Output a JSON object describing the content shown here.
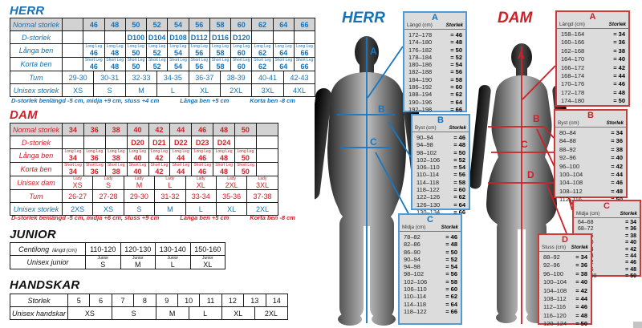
{
  "accent": {
    "blue": "#1472b8",
    "red": "#cc2127"
  },
  "herr": {
    "title": "HERR",
    "table": {
      "rows": [
        {
          "label": "Normal storlek",
          "values": [
            "46",
            "48",
            "50",
            "52",
            "54",
            "56",
            "58",
            "60",
            "62",
            "64",
            "66"
          ]
        },
        {
          "label": "D-storlek",
          "values": [
            "",
            "",
            "D100",
            "D104",
            "D108",
            "D112",
            "D116",
            "D120",
            "",
            "",
            ""
          ]
        },
        {
          "label": "Långa ben",
          "tag": "Long Leg",
          "values": [
            "46",
            "48",
            "50",
            "52",
            "54",
            "56",
            "58",
            "60",
            "62",
            "64",
            "66"
          ]
        },
        {
          "label": "Korta ben",
          "tag": "Short Leg",
          "values": [
            "46",
            "48",
            "50",
            "52",
            "54",
            "56",
            "58",
            "60",
            "62",
            "64",
            "66"
          ]
        },
        {
          "label": "Tum",
          "values": [
            "29-30",
            "30-31",
            "32-33",
            "34-35",
            "36-37",
            "38-39",
            "40-41",
            "42-43"
          ]
        },
        {
          "label": "Unisex storlek",
          "values": [
            "XS",
            "S",
            "M",
            "L",
            "XL",
            "2XL",
            "3XL",
            "4XL"
          ]
        }
      ]
    },
    "footnote": {
      "main": "D-storlek benlängd -5 cm, midja +9 cm, stuss +4 cm",
      "langa": "Långa ben +5 cm",
      "korta": "Korta ben -8 cm"
    }
  },
  "dam": {
    "title": "DAM",
    "table": {
      "rows": [
        {
          "label": "Normal storlek",
          "values": [
            "34",
            "36",
            "38",
            "40",
            "42",
            "44",
            "46",
            "48",
            "50"
          ]
        },
        {
          "label": "D-storlek",
          "values": [
            "",
            "",
            "",
            "D20",
            "D21",
            "D22",
            "D23",
            "D24",
            ""
          ]
        },
        {
          "label": "Långa ben",
          "tag": "Long Leg",
          "values": [
            "34",
            "36",
            "38",
            "40",
            "42",
            "44",
            "46",
            "48",
            "50"
          ]
        },
        {
          "label": "Korta ben",
          "tag": "Short Leg",
          "values": [
            "34",
            "36",
            "38",
            "40",
            "42",
            "44",
            "46",
            "48",
            "50"
          ]
        },
        {
          "label": "Unisex dam",
          "tag": "Lady",
          "values": [
            "XS",
            "S",
            "M",
            "L",
            "XL",
            "2XL",
            "3XL"
          ]
        },
        {
          "label": "Tum",
          "values": [
            "26-27",
            "27-28",
            "29-30",
            "31-32",
            "33-34",
            "35-36",
            "37-38"
          ]
        },
        {
          "label": "Unisex storlek",
          "values": [
            "2XS",
            "XS",
            "S",
            "M",
            "L",
            "XL",
            "2XL"
          ]
        }
      ]
    },
    "footnote": {
      "main": "D-storlek benlängd -5 cm, midja +6 cm, stuss +9 cm",
      "langa": "Långa ben +5 cm",
      "korta": "Korta ben -8 cm"
    }
  },
  "junior": {
    "title": "JUNIOR",
    "row1_label": "Centilong",
    "row1_sub": "längd (cm)",
    "ranges": [
      "110-120",
      "120-130",
      "130-140",
      "150-160"
    ],
    "row2_label": "Unisex junior",
    "tag": "Junior",
    "sizes": [
      "S",
      "M",
      "L",
      "XL"
    ]
  },
  "handskar": {
    "title": "HANDSKAR",
    "row1_label": "Storlek",
    "sizes": [
      "5",
      "6",
      "7",
      "8",
      "9",
      "10",
      "11",
      "12",
      "13",
      "14"
    ],
    "row2_label": "Unisex handskar",
    "gloves": [
      "XS",
      "S",
      "M",
      "L",
      "XL",
      "2XL"
    ]
  },
  "figures": {
    "eq": "=",
    "herr": {
      "title": "HERR",
      "boxes": [
        {
          "letter": "A",
          "measure": "Längd (cm)",
          "col2": "Storlek",
          "rows": [
            [
              "172–178",
              "46"
            ],
            [
              "174–180",
              "48"
            ],
            [
              "176–182",
              "50"
            ],
            [
              "178–184",
              "52"
            ],
            [
              "180–186",
              "54"
            ],
            [
              "182–188",
              "56"
            ],
            [
              "184–190",
              "58"
            ],
            [
              "186–192",
              "60"
            ],
            [
              "188–194",
              "62"
            ],
            [
              "190–196",
              "64"
            ],
            [
              "192–198",
              "66"
            ]
          ]
        },
        {
          "letter": "B",
          "measure": "Byst (cm)",
          "col2": "Storlek",
          "rows": [
            [
              "90–94",
              "46"
            ],
            [
              "94–98",
              "48"
            ],
            [
              "98–102",
              "50"
            ],
            [
              "102–106",
              "52"
            ],
            [
              "106–110",
              "54"
            ],
            [
              "110–114",
              "56"
            ],
            [
              "114–118",
              "58"
            ],
            [
              "118–122",
              "60"
            ],
            [
              "122–126",
              "62"
            ],
            [
              "126–130",
              "64"
            ],
            [
              "130–134",
              "66"
            ]
          ]
        },
        {
          "letter": "C",
          "measure": "Midja (cm)",
          "col2": "Storlek",
          "rows": [
            [
              "78–82",
              "46"
            ],
            [
              "82–86",
              "48"
            ],
            [
              "86–90",
              "50"
            ],
            [
              "90–94",
              "52"
            ],
            [
              "94–98",
              "54"
            ],
            [
              "98–102",
              "56"
            ],
            [
              "102–106",
              "58"
            ],
            [
              "106–110",
              "60"
            ],
            [
              "110–114",
              "62"
            ],
            [
              "114–118",
              "64"
            ],
            [
              "118–122",
              "66"
            ]
          ]
        }
      ]
    },
    "dam": {
      "title": "DAM",
      "boxes": [
        {
          "letter": "A",
          "measure": "Längd (cm)",
          "col2": "Storlek",
          "rows": [
            [
              "158–164",
              "34"
            ],
            [
              "160–166",
              "36"
            ],
            [
              "162–168",
              "38"
            ],
            [
              "164–170",
              "40"
            ],
            [
              "166–172",
              "42"
            ],
            [
              "168–174",
              "44"
            ],
            [
              "170–176",
              "46"
            ],
            [
              "172–178",
              "48"
            ],
            [
              "174–180",
              "50"
            ]
          ]
        },
        {
          "letter": "B",
          "measure": "Byst (cm)",
          "col2": "Storlek",
          "rows": [
            [
              "80–84",
              "34"
            ],
            [
              "84–88",
              "36"
            ],
            [
              "88–92",
              "38"
            ],
            [
              "92–96",
              "40"
            ],
            [
              "96–100",
              "42"
            ],
            [
              "100–104",
              "44"
            ],
            [
              "104–108",
              "46"
            ],
            [
              "108–112",
              "48"
            ],
            [
              "112–116",
              "50"
            ]
          ]
        },
        {
          "letter": "C",
          "measure": "Midja (cm)",
          "col2": "Storlek",
          "rows": [
            [
              "64–68",
              "34"
            ],
            [
              "68–72",
              "36"
            ],
            [
              "72–76",
              "38"
            ],
            [
              "76–80",
              "40"
            ],
            [
              "80–84",
              "42"
            ],
            [
              "84–88",
              "44"
            ],
            [
              "88–92",
              "46"
            ],
            [
              "92–96",
              "48"
            ],
            [
              "96–100",
              "50"
            ]
          ]
        },
        {
          "letter": "D",
          "measure": "Stuss (cm)",
          "col2": "Storlek",
          "rows": [
            [
              "88–92",
              "34"
            ],
            [
              "92–96",
              "36"
            ],
            [
              "96–100",
              "38"
            ],
            [
              "100–104",
              "40"
            ],
            [
              "104–108",
              "42"
            ],
            [
              "108–112",
              "44"
            ],
            [
              "112–116",
              "46"
            ],
            [
              "116–120",
              "48"
            ],
            [
              "120–124",
              "50"
            ]
          ]
        }
      ]
    }
  }
}
